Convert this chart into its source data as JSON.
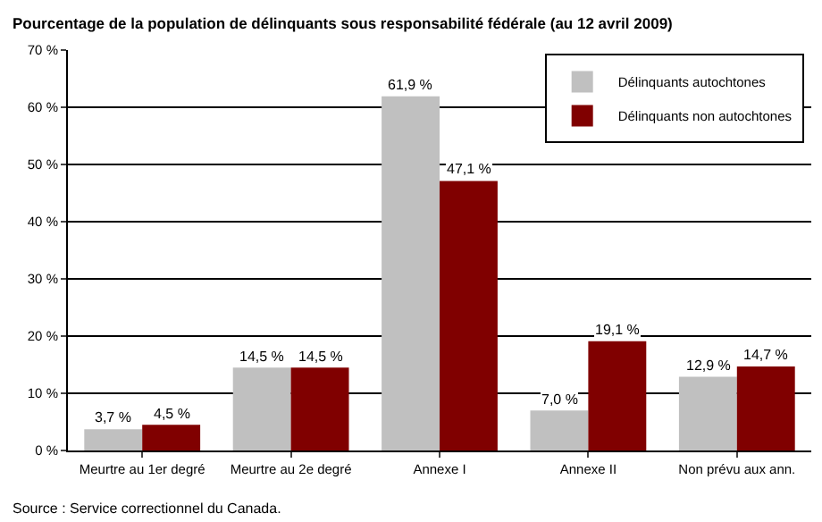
{
  "chart_data": {
    "type": "bar",
    "title": "Pourcentage de la population de délinquants sous responsabilité fédérale (au 12 avril 2009)",
    "categories": [
      "Meurtre au 1er degré",
      "Meurtre au 2e degré",
      "Annexe I",
      "Annexe II",
      "Non prévu aux ann."
    ],
    "series": [
      {
        "name": "Délinquants autochtones",
        "color": "#c0c0c0",
        "values": [
          3.7,
          14.5,
          61.9,
          7.0,
          12.9
        ],
        "value_labels": [
          "3,7 %",
          "14,5 %",
          "61,9 %",
          "7,0 %",
          "12,9 %"
        ]
      },
      {
        "name": "Délinquants non autochtones",
        "color": "#800000",
        "values": [
          4.5,
          14.5,
          47.1,
          19.1,
          14.7
        ],
        "value_labels": [
          "4,5 %",
          "14,5 %",
          "47,1 %",
          "19,1 %",
          "14,7 %"
        ]
      }
    ],
    "ylim": [
      0,
      70
    ],
    "yticks": [
      {
        "value": 0,
        "label": "0 %"
      },
      {
        "value": 10,
        "label": "10 %"
      },
      {
        "value": 20,
        "label": "20 %"
      },
      {
        "value": 30,
        "label": "30 %"
      },
      {
        "value": 40,
        "label": "40 %"
      },
      {
        "value": 50,
        "label": "50 %"
      },
      {
        "value": 60,
        "label": "60 %"
      },
      {
        "value": 70,
        "label": "70 %"
      }
    ],
    "grid": "y",
    "legend": "top right",
    "annotations": [
      "Source : Service correctionnel du Canada."
    ]
  }
}
